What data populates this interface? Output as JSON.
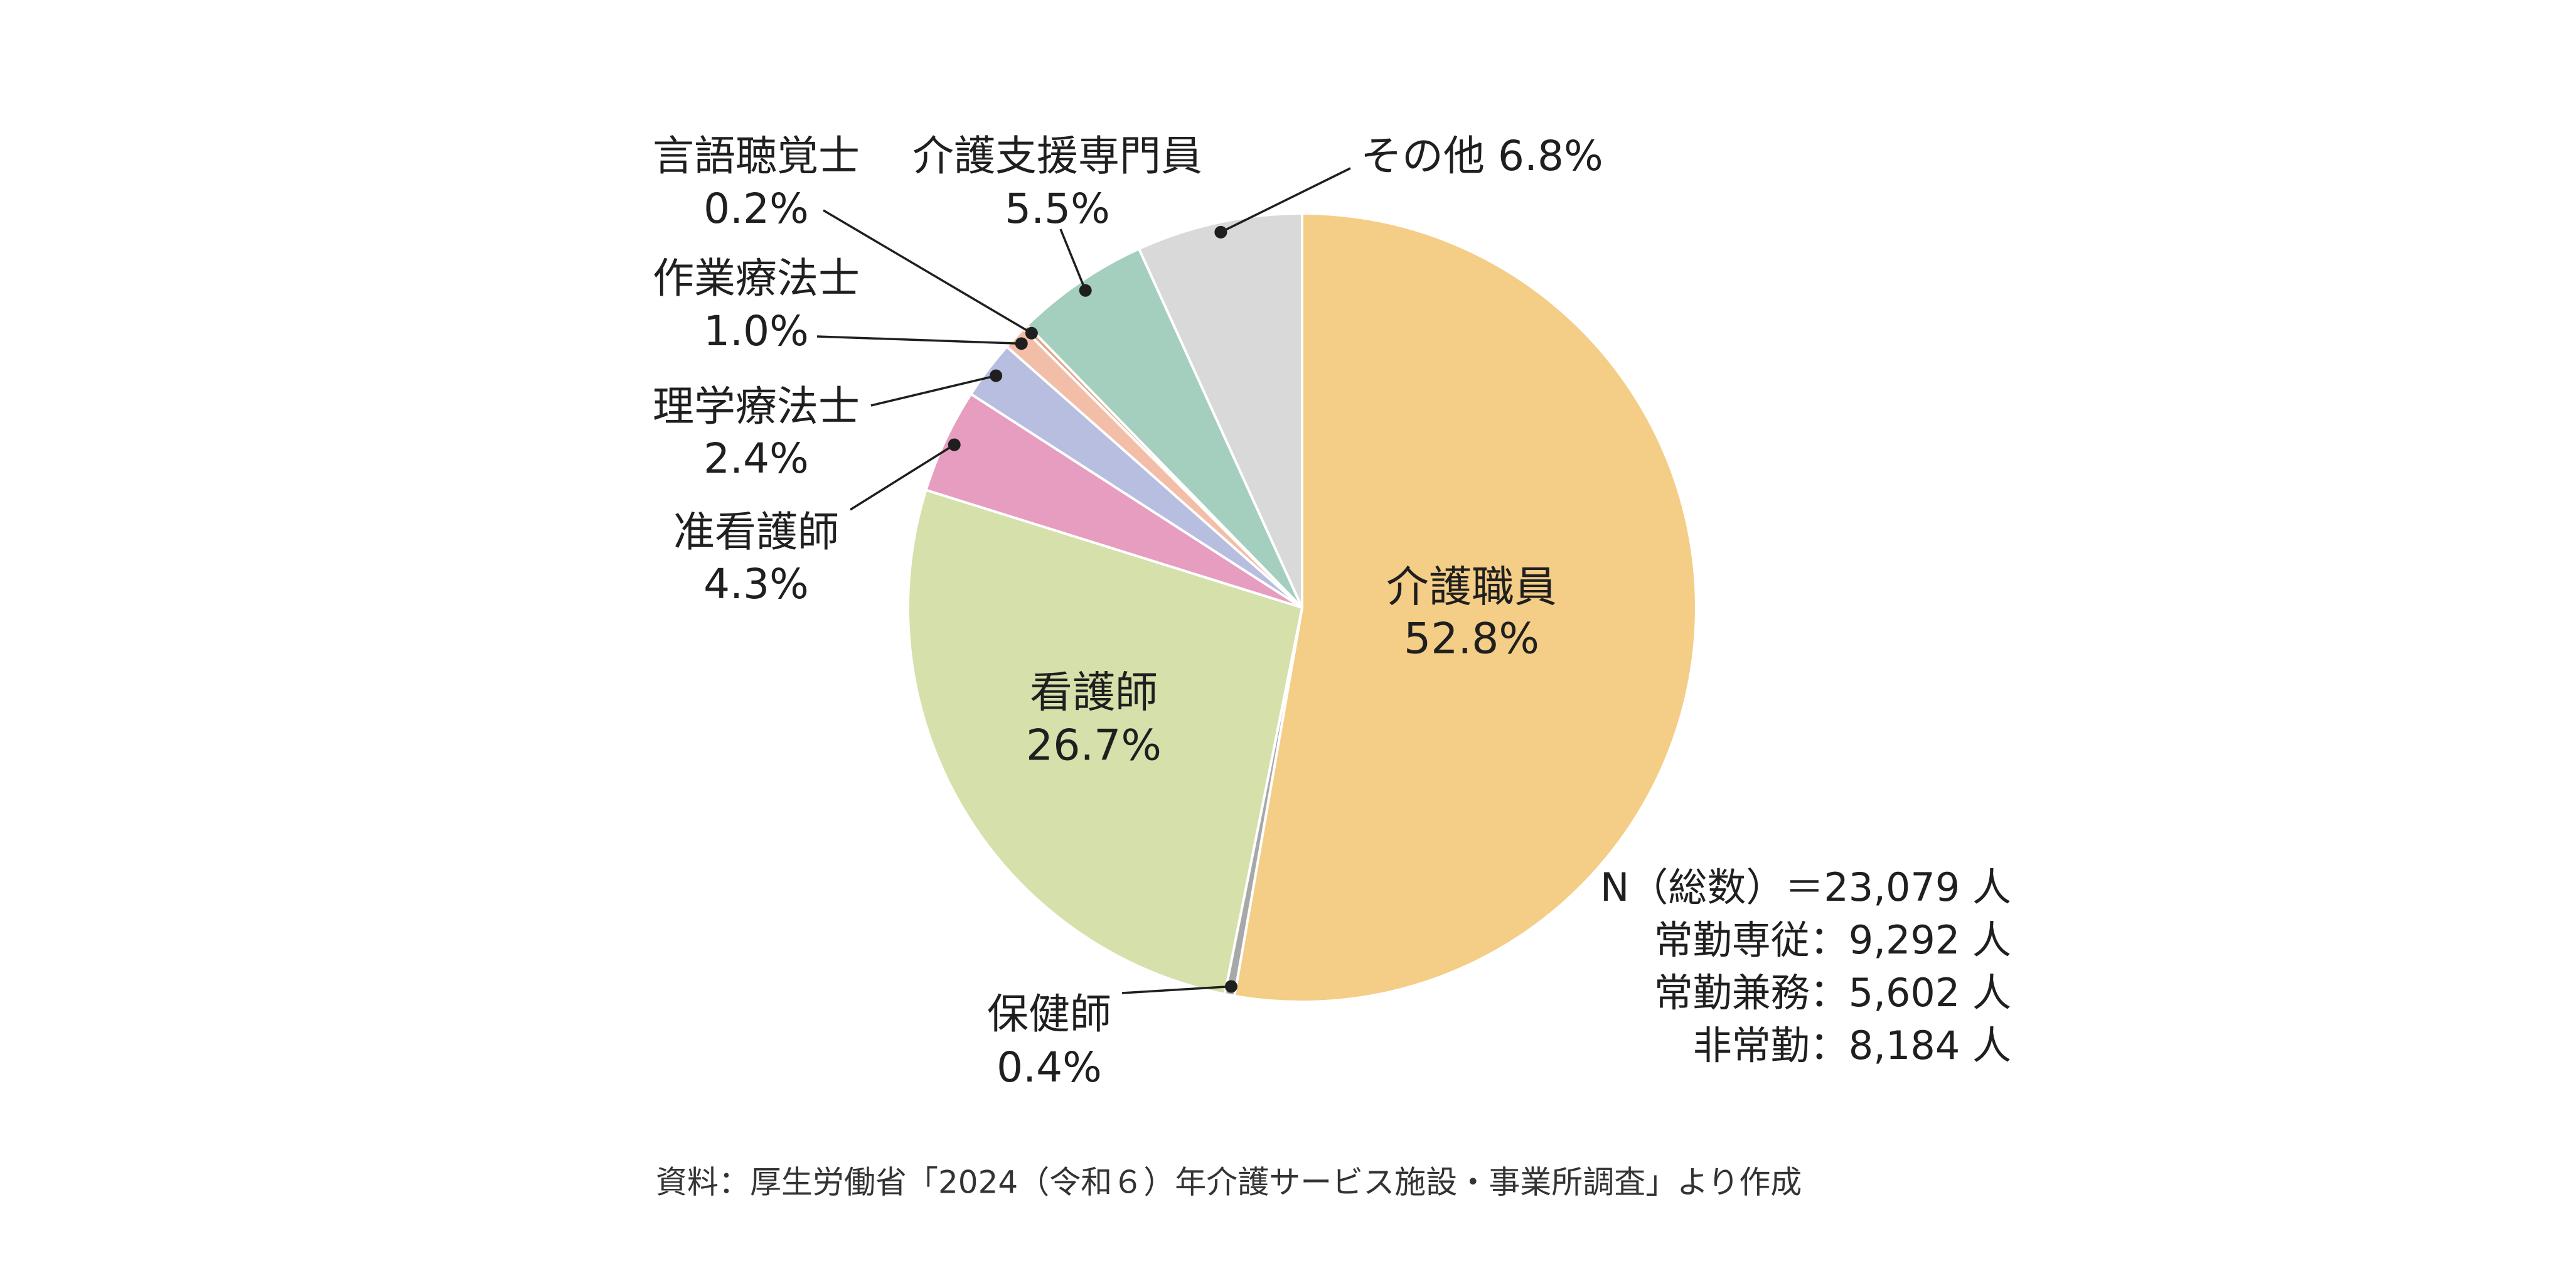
{
  "chart_data": {
    "type": "pie",
    "title": "",
    "unit": "%",
    "slices": [
      {
        "label": "介護職員",
        "value": 52.8,
        "value_label": "52.8%",
        "color": "#f4cd86"
      },
      {
        "label": "保健師",
        "value": 0.4,
        "value_label": "0.4%",
        "color": "#a8a8a8"
      },
      {
        "label": "看護師",
        "value": 26.7,
        "value_label": "26.7%",
        "color": "#d5e0ab"
      },
      {
        "label": "准看護師",
        "value": 4.3,
        "value_label": "4.3%",
        "color": "#e79dbf"
      },
      {
        "label": "理学療法士",
        "value": 2.4,
        "value_label": "2.4%",
        "color": "#b7bedf"
      },
      {
        "label": "作業療法士",
        "value": 1.0,
        "value_label": "1.0%",
        "color": "#f3bea7"
      },
      {
        "label": "言語聴覚士",
        "value": 0.2,
        "value_label": "0.2%",
        "color": "#e5a183"
      },
      {
        "label": "介護支援専門員",
        "value": 5.5,
        "value_label": "5.5%",
        "color": "#a4cfbe"
      },
      {
        "label": "その他",
        "value": 6.8,
        "value_label": "その他 6.8%",
        "color": "#d9d9d9"
      }
    ],
    "notes": [
      "N（総数）＝23,079 人",
      "常勤専従：9,292 人",
      "常勤兼務：5,602 人",
      "非常勤：8,184 人"
    ],
    "source": "資料：厚生労働省「2024（令和６）年介護サービス施設・事業所調査」より作成",
    "legend": "none"
  }
}
